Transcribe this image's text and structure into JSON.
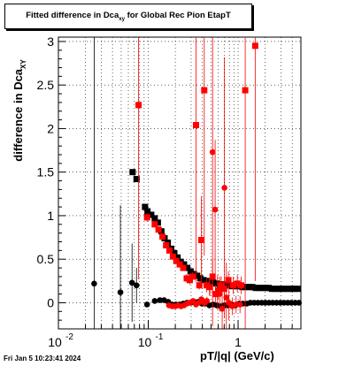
{
  "title": {
    "main": "Fitted difference in Dca",
    "subscript": "xy",
    "rest": " for Global Rec Pion EtapT"
  },
  "footer": "Fri Jan  5 10:23:41 2024",
  "colors": {
    "black_series": "#000000",
    "red_series": "#ff0000",
    "grid": "#000000"
  },
  "chart_data": {
    "type": "scatter",
    "xscale": "log",
    "xlim": [
      0.01,
      5.0
    ],
    "ylim": [
      -0.3,
      3.05
    ],
    "xlabel": "pT/|q| (GeV/c)",
    "ylabel": {
      "main": "difference in Dca",
      "subscript": "XY"
    },
    "xticks": [
      {
        "value": 0.01,
        "label": "10",
        "exp": "-2"
      },
      {
        "value": 0.1,
        "label": "10",
        "exp": "-1"
      },
      {
        "value": 1,
        "label": "1",
        "exp": ""
      }
    ],
    "yticks": [
      0,
      0.5,
      1,
      1.5,
      2,
      2.5,
      3
    ],
    "ytick_labels": [
      "0",
      "0.5",
      "1",
      "1.5",
      "2",
      "2.5",
      "3"
    ],
    "grid": true,
    "series": [
      {
        "marker": "square",
        "color": "#000000",
        "points": [
          [
            0.067,
            1.5,
            0.0
          ],
          [
            0.074,
            1.42,
            0.0
          ],
          [
            0.092,
            1.1,
            0.02
          ],
          [
            0.098,
            1.05,
            0.02
          ],
          [
            0.108,
            1.01,
            0.02
          ],
          [
            0.118,
            0.97,
            0.02
          ],
          [
            0.128,
            0.92,
            0.02
          ],
          [
            0.14,
            0.82,
            0.02
          ],
          [
            0.152,
            0.74,
            0.02
          ],
          [
            0.165,
            0.69,
            0.02
          ],
          [
            0.18,
            0.62,
            0.02
          ],
          [
            0.195,
            0.57,
            0.02
          ],
          [
            0.212,
            0.52,
            0.02
          ],
          [
            0.23,
            0.47,
            0.02
          ],
          [
            0.25,
            0.44,
            0.02
          ],
          [
            0.272,
            0.4,
            0.02
          ],
          [
            0.296,
            0.36,
            0.02
          ],
          [
            0.322,
            0.33,
            0.02
          ],
          [
            0.35,
            0.31,
            0.02
          ],
          [
            0.38,
            0.28,
            0.02
          ],
          [
            0.413,
            0.26,
            0.02
          ],
          [
            0.449,
            0.25,
            0.02
          ],
          [
            0.488,
            0.24,
            0.02
          ],
          [
            0.53,
            0.23,
            0.02
          ],
          [
            0.576,
            0.22,
            0.02
          ],
          [
            0.626,
            0.21,
            0.02
          ],
          [
            0.68,
            0.21,
            0.02
          ],
          [
            0.739,
            0.2,
            0.02
          ],
          [
            0.803,
            0.2,
            0.02
          ],
          [
            0.873,
            0.19,
            0.02
          ],
          [
            0.949,
            0.19,
            0.02
          ],
          [
            1.03,
            0.19,
            0.02
          ],
          [
            1.12,
            0.18,
            0.02
          ],
          [
            1.22,
            0.18,
            0.02
          ],
          [
            1.33,
            0.18,
            0.02
          ],
          [
            1.44,
            0.18,
            0.02
          ],
          [
            1.57,
            0.17,
            0.02
          ],
          [
            1.7,
            0.17,
            0.02
          ],
          [
            1.85,
            0.17,
            0.02
          ],
          [
            2.01,
            0.17,
            0.02
          ],
          [
            2.19,
            0.17,
            0.02
          ],
          [
            2.38,
            0.16,
            0.02
          ],
          [
            2.59,
            0.16,
            0.02
          ],
          [
            2.81,
            0.16,
            0.02
          ],
          [
            3.06,
            0.16,
            0.02
          ],
          [
            3.32,
            0.16,
            0.02
          ],
          [
            3.61,
            0.16,
            0.02
          ],
          [
            3.93,
            0.16,
            0.02
          ],
          [
            4.27,
            0.16,
            0.02
          ],
          [
            4.64,
            0.16,
            0.02
          ]
        ]
      },
      {
        "marker": "circle",
        "color": "#000000",
        "points": [
          [
            0.025,
            0.22,
            2.9
          ],
          [
            0.049,
            0.12,
            1.0
          ],
          [
            0.066,
            0.23,
            0.45
          ],
          [
            0.074,
            0.2,
            0.2
          ],
          [
            0.097,
            -0.02,
            0.02
          ],
          [
            0.118,
            0.02,
            0.02
          ],
          [
            0.135,
            0.03,
            0.02
          ],
          [
            0.15,
            0.03,
            0.02
          ],
          [
            0.167,
            0.01,
            0.02
          ],
          [
            0.184,
            -0.02,
            0.02
          ],
          [
            0.203,
            -0.02,
            0.02
          ],
          [
            0.223,
            -0.02,
            0.02
          ],
          [
            0.245,
            -0.01,
            0.02
          ],
          [
            0.27,
            0.0,
            0.02
          ],
          [
            0.297,
            0.0,
            0.02
          ],
          [
            0.327,
            0.01,
            0.02
          ],
          [
            0.36,
            0.01,
            0.02
          ],
          [
            0.396,
            -0.01,
            0.02
          ],
          [
            0.436,
            -0.01,
            0.02
          ],
          [
            0.48,
            -0.03,
            0.02
          ],
          [
            0.528,
            -0.02,
            0.02
          ],
          [
            0.581,
            -0.03,
            0.02
          ],
          [
            0.639,
            -0.04,
            0.02
          ],
          [
            0.703,
            -0.03,
            0.02
          ],
          [
            0.774,
            -0.03,
            0.02
          ],
          [
            0.851,
            -0.02,
            0.02
          ],
          [
            0.937,
            -0.03,
            0.02
          ],
          [
            1.03,
            -0.01,
            0.02
          ],
          [
            1.13,
            -0.01,
            0.02
          ],
          [
            1.25,
            -0.01,
            0.02
          ],
          [
            1.37,
            0.0,
            0.02
          ],
          [
            1.51,
            0.0,
            0.02
          ],
          [
            1.66,
            0.0,
            0.02
          ],
          [
            1.83,
            0.0,
            0.02
          ],
          [
            2.01,
            0.0,
            0.02
          ],
          [
            2.21,
            0.0,
            0.02
          ],
          [
            2.43,
            0.0,
            0.02
          ],
          [
            2.68,
            0.0,
            0.02
          ],
          [
            2.95,
            0.0,
            0.02
          ],
          [
            3.24,
            0.0,
            0.02
          ],
          [
            3.57,
            0.0,
            0.02
          ],
          [
            3.92,
            0.0,
            0.02
          ],
          [
            4.32,
            0.0,
            0.02
          ],
          [
            4.75,
            0.0,
            0.02
          ]
        ]
      },
      {
        "marker": "square",
        "color": "#ff0000",
        "points": [
          [
            0.078,
            2.27,
            2.0
          ],
          [
            0.097,
            0.98,
            0.05
          ],
          [
            0.118,
            0.9,
            0.02
          ],
          [
            0.13,
            0.84,
            0.02
          ],
          [
            0.144,
            0.76,
            0.02
          ],
          [
            0.158,
            0.66,
            0.02
          ],
          [
            0.172,
            0.6,
            0.02
          ],
          [
            0.188,
            0.53,
            0.02
          ],
          [
            0.205,
            0.48,
            0.02
          ],
          [
            0.224,
            0.44,
            0.03
          ],
          [
            0.245,
            0.4,
            0.03
          ],
          [
            0.268,
            0.28,
            0.05
          ],
          [
            0.29,
            0.26,
            0.05
          ],
          [
            0.31,
            0.3,
            0.05
          ],
          [
            0.34,
            2.04,
            1.8
          ],
          [
            0.37,
            0.2,
            0.05
          ],
          [
            0.39,
            0.72,
            0.5
          ],
          [
            0.42,
            2.44,
            1.9
          ],
          [
            0.445,
            0.2,
            0.08
          ],
          [
            0.48,
            0.18,
            0.1
          ],
          [
            0.52,
            0.3,
            0.2
          ],
          [
            0.56,
            0.1,
            0.1
          ],
          [
            0.6,
            0.14,
            0.1
          ],
          [
            0.65,
            0.2,
            0.1
          ],
          [
            0.7,
            0.16,
            0.1
          ],
          [
            0.78,
            0.26,
            0.1
          ],
          [
            0.88,
            0.2,
            0.1
          ],
          [
            0.98,
            0.22,
            0.1
          ],
          [
            1.08,
            0.2,
            0.1
          ],
          [
            1.2,
            2.44,
            3.2
          ],
          [
            1.55,
            2.95,
            2.7
          ]
        ]
      },
      {
        "marker": "circle",
        "color": "#ff0000",
        "points": [
          [
            0.17,
            -0.03,
            0.02
          ],
          [
            0.185,
            -0.04,
            0.02
          ],
          [
            0.2,
            -0.04,
            0.02
          ],
          [
            0.215,
            -0.03,
            0.02
          ],
          [
            0.232,
            -0.04,
            0.02
          ],
          [
            0.25,
            -0.03,
            0.02
          ],
          [
            0.27,
            -0.01,
            0.02
          ],
          [
            0.29,
            0.0,
            0.02
          ],
          [
            0.315,
            0.02,
            0.02
          ],
          [
            0.34,
            -0.02,
            0.02
          ],
          [
            0.365,
            0.0,
            0.03
          ],
          [
            0.39,
            0.04,
            0.03
          ],
          [
            0.42,
            0.0,
            0.05
          ],
          [
            0.45,
            0.02,
            0.05
          ],
          [
            0.485,
            0.18,
            0.1
          ],
          [
            0.52,
            1.73,
            2.0
          ],
          [
            0.555,
            1.07,
            0.8
          ],
          [
            0.59,
            0.12,
            0.2
          ],
          [
            0.625,
            0.1,
            0.2
          ],
          [
            0.665,
            -0.07,
            0.3
          ],
          [
            0.705,
            1.32,
            1.5
          ],
          [
            0.74,
            0.06,
            0.4
          ],
          [
            0.79,
            0.0,
            0.2
          ],
          [
            0.86,
            -0.04,
            0.1
          ],
          [
            0.95,
            -0.02,
            0.1
          ],
          [
            1.05,
            -0.02,
            0.1
          ]
        ]
      }
    ]
  }
}
